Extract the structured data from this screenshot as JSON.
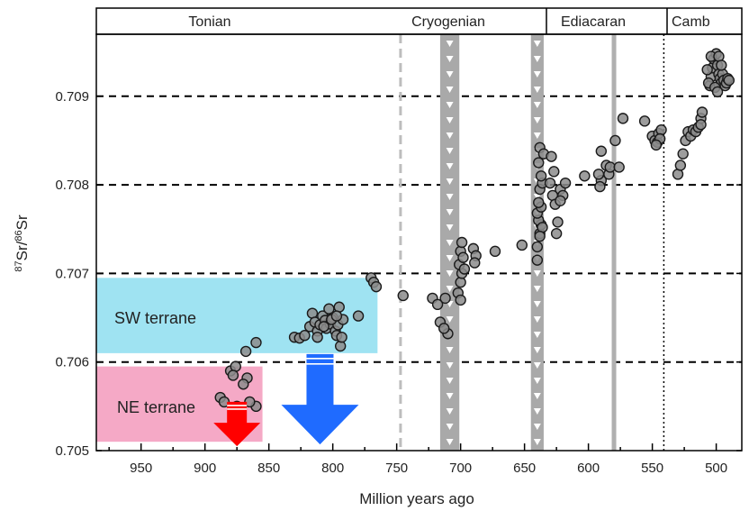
{
  "chart_data": {
    "type": "scatter",
    "xlabel": "Million years ago",
    "ylabel_parts": {
      "sup1": "87",
      "main1": "Sr/",
      "sup2": "86",
      "main2": "Sr"
    },
    "xlim": [
      985,
      480
    ],
    "ylim": [
      0.705,
      0.7097
    ],
    "x_reversed": true,
    "x_ticks": [
      950,
      900,
      850,
      800,
      750,
      700,
      650,
      600,
      550,
      500
    ],
    "y_ticks": [
      0.705,
      0.706,
      0.707,
      0.708,
      0.709
    ],
    "y_tick_labels": [
      "0.705",
      "0.706",
      "0.707",
      "0.708",
      "0.709"
    ],
    "x_tick_labels": [
      "950",
      "900",
      "850",
      "800",
      "750",
      "700",
      "650",
      "600",
      "550",
      "500"
    ],
    "grid": "horizontal dashed at 0.706, 0.707, 0.708, 0.709",
    "periods": [
      {
        "name": "Tonian",
        "from": 985,
        "to": 635
      },
      {
        "name": "Cryogenian",
        "from": 720,
        "to": 635
      },
      {
        "name": "Ediacaran",
        "from": 635,
        "to": 541
      },
      {
        "name": "Camb",
        "from": 541,
        "to": 480
      }
    ],
    "period_label_text": [
      "Tonian",
      "Cryogenian",
      "Ediacaran",
      "Camb"
    ],
    "regions": [
      {
        "label": "SW terrane",
        "x_from": 985,
        "x_to": 765,
        "y_from": 0.7061,
        "y_to": 0.70695,
        "color": "#9fe3f2"
      },
      {
        "label": "NE terrane",
        "x_from": 985,
        "x_to": 855,
        "y_from": 0.7051,
        "y_to": 0.70595,
        "color": "#f5a9c6"
      }
    ],
    "region_labels": [
      "SW terrane",
      "NE terrane"
    ],
    "glaciations": [
      {
        "type": "dashed-light",
        "x": 747
      },
      {
        "type": "band",
        "from": 716,
        "to": 701
      },
      {
        "type": "band",
        "from": 645,
        "to": 635
      },
      {
        "type": "solid-light",
        "x": 580
      },
      {
        "type": "dotted",
        "x": 541
      }
    ],
    "arrows": [
      {
        "x": 875,
        "y_top": 0.70555,
        "y_bottom": 0.70505,
        "color": "#ff0000",
        "size": "small"
      },
      {
        "x": 810,
        "y_top": 0.70609,
        "y_bottom": 0.70507,
        "color": "#1f6bff",
        "size": "large"
      }
    ],
    "points": [
      [
        770,
        0.70695
      ],
      [
        768,
        0.7069
      ],
      [
        766,
        0.70685
      ],
      [
        745,
        0.70675
      ],
      [
        722,
        0.70672
      ],
      [
        718,
        0.70665
      ],
      [
        712,
        0.70672
      ],
      [
        716,
        0.70645
      ],
      [
        710,
        0.70632
      ],
      [
        713,
        0.70638
      ],
      [
        702,
        0.70678
      ],
      [
        700,
        0.7069
      ],
      [
        700,
        0.7067
      ],
      [
        699,
        0.707
      ],
      [
        701,
        0.7071
      ],
      [
        700,
        0.70725
      ],
      [
        698,
        0.70718
      ],
      [
        699,
        0.70735
      ],
      [
        697,
        0.70705
      ],
      [
        690,
        0.70728
      ],
      [
        688,
        0.7072
      ],
      [
        689,
        0.70712
      ],
      [
        673,
        0.70725
      ],
      [
        652,
        0.70732
      ],
      [
        640,
        0.70715
      ],
      [
        640,
        0.7073
      ],
      [
        638,
        0.70745
      ],
      [
        637,
        0.70755
      ],
      [
        639,
        0.7076
      ],
      [
        636,
        0.70752
      ],
      [
        638,
        0.70742
      ],
      [
        640,
        0.70768
      ],
      [
        637,
        0.70775
      ],
      [
        639,
        0.7078
      ],
      [
        638,
        0.70795
      ],
      [
        636,
        0.70802
      ],
      [
        637,
        0.7081
      ],
      [
        639,
        0.70825
      ],
      [
        638,
        0.70842
      ],
      [
        635,
        0.70835
      ],
      [
        630,
        0.70802
      ],
      [
        628,
        0.70788
      ],
      [
        626,
        0.70778
      ],
      [
        624,
        0.70758
      ],
      [
        625,
        0.70745
      ],
      [
        627,
        0.70815
      ],
      [
        629,
        0.70832
      ],
      [
        622,
        0.70795
      ],
      [
        620,
        0.70788
      ],
      [
        622,
        0.70782
      ],
      [
        618,
        0.70802
      ],
      [
        603,
        0.7081
      ],
      [
        590,
        0.70805
      ],
      [
        591,
        0.70798
      ],
      [
        592,
        0.70812
      ],
      [
        590,
        0.70838
      ],
      [
        586,
        0.70822
      ],
      [
        584,
        0.70812
      ],
      [
        583,
        0.7082
      ],
      [
        579,
        0.7085
      ],
      [
        576,
        0.7082
      ],
      [
        573,
        0.70875
      ],
      [
        556,
        0.70872
      ],
      [
        550,
        0.70855
      ],
      [
        548,
        0.7085
      ],
      [
        546,
        0.70848
      ],
      [
        545,
        0.70858
      ],
      [
        543,
        0.70862
      ],
      [
        544,
        0.70852
      ],
      [
        547,
        0.70845
      ],
      [
        530,
        0.70812
      ],
      [
        528,
        0.70822
      ],
      [
        526,
        0.70835
      ],
      [
        524,
        0.7085
      ],
      [
        522,
        0.7086
      ],
      [
        520,
        0.70855
      ],
      [
        518,
        0.70862
      ],
      [
        516,
        0.7086
      ],
      [
        514,
        0.70865
      ],
      [
        512,
        0.70875
      ],
      [
        511,
        0.70882
      ],
      [
        512,
        0.70868
      ],
      [
        505,
        0.70912
      ],
      [
        504,
        0.70922
      ],
      [
        503,
        0.70932
      ],
      [
        502,
        0.70942
      ],
      [
        500,
        0.70948
      ],
      [
        499,
        0.70935
      ],
      [
        498,
        0.70925
      ],
      [
        497,
        0.7092
      ],
      [
        496,
        0.70915
      ],
      [
        495,
        0.70925
      ],
      [
        494,
        0.70918
      ],
      [
        493,
        0.70912
      ],
      [
        506,
        0.70915
      ],
      [
        507,
        0.7093
      ],
      [
        501,
        0.7091
      ],
      [
        499,
        0.70905
      ],
      [
        492,
        0.70915
      ],
      [
        491,
        0.7092
      ],
      [
        504,
        0.70945
      ],
      [
        498,
        0.70945
      ],
      [
        490,
        0.70918
      ],
      [
        496,
        0.70935
      ],
      [
        830,
        0.70628
      ],
      [
        826,
        0.70627
      ],
      [
        822,
        0.7063
      ],
      [
        818,
        0.7064
      ],
      [
        816,
        0.70655
      ],
      [
        814,
        0.70645
      ],
      [
        812,
        0.70635
      ],
      [
        810,
        0.70642
      ],
      [
        808,
        0.70652
      ],
      [
        806,
        0.70647
      ],
      [
        805,
        0.70638
      ],
      [
        803,
        0.7066
      ],
      [
        802,
        0.70643
      ],
      [
        800,
        0.7065
      ],
      [
        798,
        0.70635
      ],
      [
        797,
        0.7063
      ],
      [
        796,
        0.70642
      ],
      [
        795,
        0.70662
      ],
      [
        794,
        0.70618
      ],
      [
        793,
        0.70628
      ],
      [
        792,
        0.70648
      ],
      [
        812,
        0.70628
      ],
      [
        780,
        0.70652
      ],
      [
        801,
        0.70648
      ],
      [
        807,
        0.7064
      ],
      [
        797,
        0.70652
      ],
      [
        860,
        0.70622
      ],
      [
        868,
        0.70612
      ],
      [
        880,
        0.7059
      ],
      [
        876,
        0.70595
      ],
      [
        878,
        0.70585
      ],
      [
        867,
        0.70582
      ],
      [
        870,
        0.70575
      ],
      [
        888,
        0.7056
      ],
      [
        885,
        0.70555
      ],
      [
        875,
        0.7055
      ],
      [
        860,
        0.7055
      ],
      [
        865,
        0.70555
      ]
    ]
  }
}
